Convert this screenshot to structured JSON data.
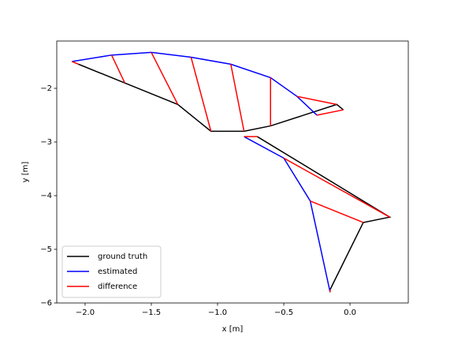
{
  "chart_data": {
    "type": "line",
    "xlabel": "x [m]",
    "ylabel": "y [m]",
    "xlim": [
      -2.214,
      0.44
    ],
    "ylim": [
      -6,
      -1.118
    ],
    "xticks": [
      {
        "value": -2,
        "label": "−2.0"
      },
      {
        "value": -1.5,
        "label": "−1.5"
      },
      {
        "value": -1,
        "label": "−1.0"
      },
      {
        "value": -0.5,
        "label": "−0.5"
      },
      {
        "value": 0,
        "label": "0.0"
      }
    ],
    "yticks": [
      {
        "value": -6,
        "label": "−6"
      },
      {
        "value": -5,
        "label": "−5"
      },
      {
        "value": -4,
        "label": "−4"
      },
      {
        "value": -3,
        "label": "−3"
      },
      {
        "value": -2,
        "label": "−2"
      }
    ],
    "legend": "lower left",
    "series": [
      {
        "name": "ground truth",
        "color": "#000000",
        "x": [
          -2.05,
          -1.7,
          -1.3,
          -1.05,
          -0.8,
          -0.6,
          -0.1,
          -0.05,
          null,
          -0.7,
          0.3,
          0.1,
          -0.15
        ],
        "y": [
          -1.55,
          -1.9,
          -2.3,
          -2.8,
          -2.8,
          -2.7,
          -2.3,
          -2.4,
          null,
          -2.9,
          -4.4,
          -4.5,
          -5.75
        ]
      },
      {
        "name": "estimated",
        "color": "#0000ff",
        "x": [
          -2.1,
          -1.8,
          -1.5,
          -1.2,
          -0.9,
          -0.6,
          -0.4,
          -0.25,
          null,
          -0.8,
          -0.5,
          -0.3,
          -0.15
        ],
        "y": [
          -1.5,
          -1.38,
          -1.33,
          -1.42,
          -1.55,
          -1.8,
          -2.15,
          -2.5,
          null,
          -2.9,
          -3.3,
          -4.1,
          -5.8
        ]
      },
      {
        "name": "difference",
        "color": "#ff0000",
        "x": [
          -2.1,
          -2.05,
          null,
          -1.8,
          -1.7,
          null,
          -1.5,
          -1.3,
          null,
          -1.2,
          -1.05,
          null,
          -0.9,
          -0.8,
          null,
          -0.6,
          -0.6,
          null,
          -0.4,
          -0.1,
          null,
          -0.25,
          -0.05,
          null,
          -0.8,
          -0.7,
          null,
          -0.5,
          0.3,
          null,
          -0.3,
          0.1,
          null,
          -0.15,
          -0.15
        ],
        "y": [
          -1.5,
          -1.55,
          null,
          -1.38,
          -1.9,
          null,
          -1.33,
          -2.3,
          null,
          -1.42,
          -2.8,
          null,
          -1.55,
          -2.8,
          null,
          -1.8,
          -2.7,
          null,
          -2.15,
          -2.3,
          null,
          -2.5,
          -2.4,
          null,
          -2.9,
          -2.9,
          null,
          -3.3,
          -4.4,
          null,
          -4.1,
          -4.5,
          null,
          -5.8,
          -5.75
        ]
      }
    ]
  }
}
